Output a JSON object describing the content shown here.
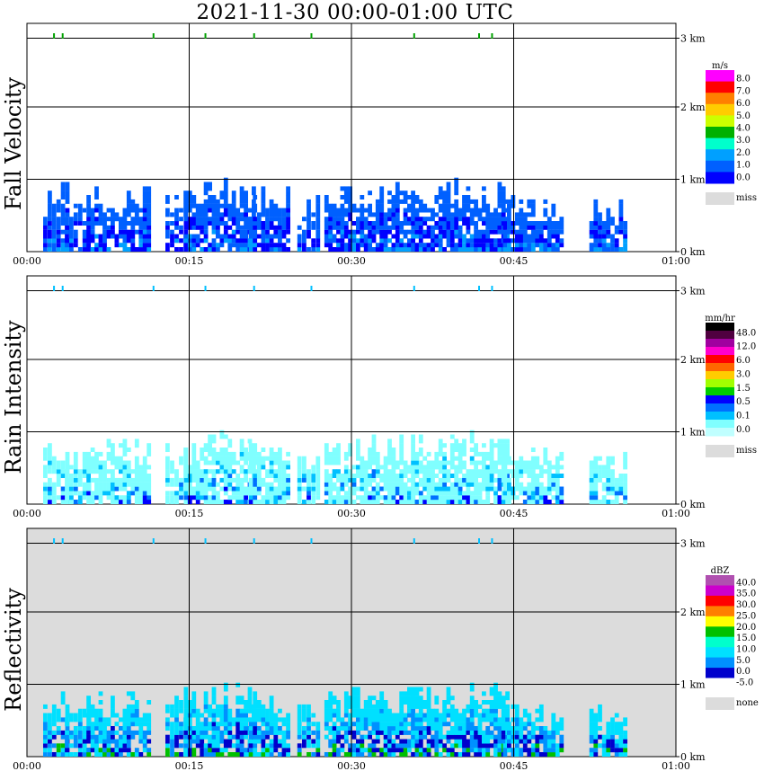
{
  "title": "2021-11-30   00:00-01:00 UTC",
  "x_ticks": [
    "00:00",
    "00:15",
    "00:30",
    "00:45",
    "01:00"
  ],
  "y_ticks": [
    "3 km",
    "2 km",
    "1 km",
    "0 km"
  ],
  "chart_data": [
    {
      "type": "heatmap",
      "ylabel": "Fall Velocity",
      "xlim": [
        "00:00",
        "01:00"
      ],
      "ylim_km": [
        0,
        3.1
      ],
      "legend": {
        "unit": "m/s",
        "levels": [
          "8.0",
          "7.0",
          "6.0",
          "5.0",
          "4.0",
          "3.0",
          "2.0",
          "1.0",
          "0.0"
        ],
        "colors": [
          "#ff00ff",
          "#ff0000",
          "#ff7f00",
          "#ffcc00",
          "#ccff00",
          "#00b000",
          "#00ffcc",
          "#00a0ff",
          "#0060ff",
          "#0000ff"
        ],
        "missing_label": "miss",
        "missing_color": "#dcdcdc"
      },
      "background": "#ffffff",
      "dominant_colors": [
        "#0060ff",
        "#0000ff",
        "#00a0ff"
      ]
    },
    {
      "type": "heatmap",
      "ylabel": "Rain Intensity",
      "xlim": [
        "00:00",
        "01:00"
      ],
      "ylim_km": [
        0,
        3.1
      ],
      "legend": {
        "unit": "mm/hr",
        "levels": [
          "48.0",
          "12.0",
          "6.0",
          "3.0",
          "1.5",
          "0.5",
          "0.1",
          "0.0"
        ],
        "colors": [
          "#000000",
          "#500040",
          "#a000a0",
          "#ff00cc",
          "#ff0000",
          "#ff6600",
          "#ffcc00",
          "#a0ff00",
          "#00cc00",
          "#0000ff",
          "#0070ff",
          "#00c0ff",
          "#80ffff",
          "#c0ffff"
        ],
        "missing_label": "miss",
        "missing_color": "#dcdcdc"
      },
      "background": "#ffffff",
      "dominant_colors": [
        "#80ffff",
        "#00c0ff",
        "#0070ff",
        "#0000ff"
      ]
    },
    {
      "type": "heatmap",
      "ylabel": "Reflectivity",
      "xlim": [
        "00:00",
        "01:00"
      ],
      "ylim_km": [
        0,
        3.1
      ],
      "legend": {
        "unit": "dBZ",
        "levels": [
          "40.0",
          "35.0",
          "30.0",
          "25.0",
          "20.0",
          "15.0",
          "10.0",
          "5.0",
          "0.0",
          "-5.0"
        ],
        "colors": [
          "#b050b0",
          "#cc00cc",
          "#ff0000",
          "#ff7f00",
          "#ffff00",
          "#00c000",
          "#00ffcc",
          "#00e0ff",
          "#0090ff",
          "#0000cc",
          "#ffffff"
        ],
        "missing_label": "none",
        "missing_color": "#dcdcdc"
      },
      "background": "#dcdcdc",
      "dominant_colors": [
        "#00e0ff",
        "#0090ff",
        "#0000cc",
        "#00c000"
      ]
    }
  ],
  "top_markers_min": [
    2.5,
    3.3,
    11.7,
    16.5,
    21.0,
    26.3,
    35.8,
    41.8,
    43.0
  ]
}
